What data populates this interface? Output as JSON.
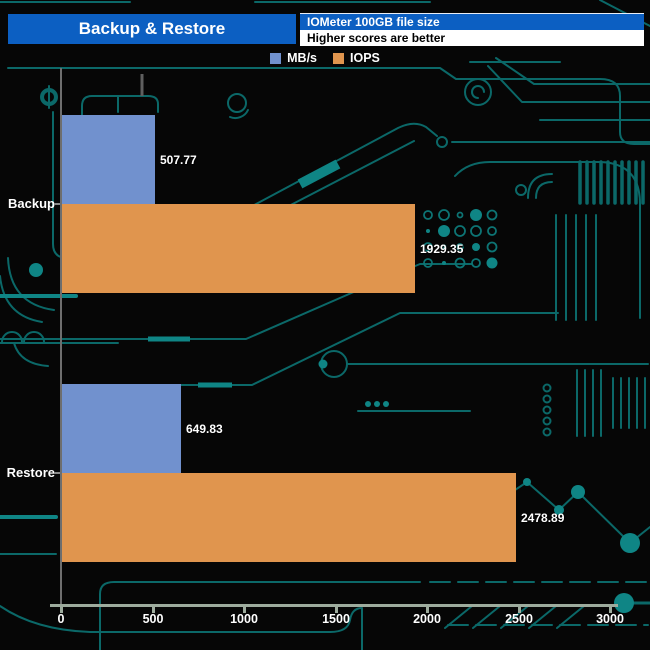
{
  "header": {
    "title": "Backup & Restore",
    "subtitle": "IOMeter 100GB file size",
    "note": "Higher scores are better"
  },
  "legend": [
    {
      "label": "MB/s",
      "color": "#7191ce"
    },
    {
      "label": "IOPS",
      "color": "#e0954e"
    }
  ],
  "chart_data": {
    "type": "bar",
    "orientation": "horizontal",
    "title": "Backup & Restore",
    "subtitle": "IOMeter 100GB file size",
    "note": "Higher scores are better",
    "categories": [
      "Backup",
      "Restore"
    ],
    "series": [
      {
        "name": "MB/s",
        "color": "#7191ce",
        "values": [
          507.77,
          649.83
        ]
      },
      {
        "name": "IOPS",
        "color": "#e0954e",
        "values": [
          1929.35,
          2478.89
        ]
      }
    ],
    "xlim": [
      0,
      3000
    ],
    "x_ticks": [
      0,
      500,
      1000,
      1500,
      2000,
      2500,
      3000
    ],
    "value_labels": [
      "507.77",
      "1929.35",
      "649.83",
      "2478.89"
    ],
    "grid": false,
    "legend_position": "top"
  },
  "colors": {
    "header_blue": "#0c5fc2",
    "bar_blue": "#7191ce",
    "bar_orange": "#e0954e",
    "background": "#060606",
    "circuit_teal": "#0b6868",
    "circuit_bright": "#0f8585",
    "x_axis": "#9dab9d",
    "y_axis": "#6e6e6e",
    "text": "#ffffff"
  }
}
